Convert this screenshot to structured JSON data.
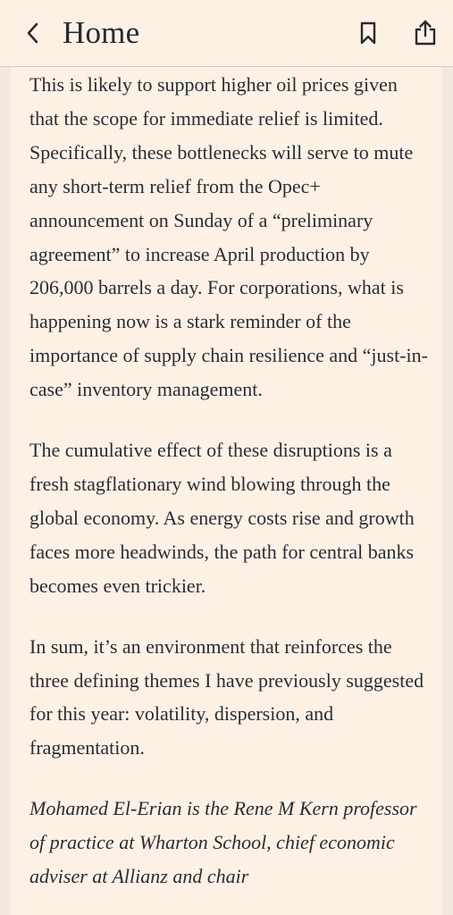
{
  "header": {
    "title": "Home",
    "icons": {
      "back": "chevron-left-icon",
      "bookmark": "bookmark-icon",
      "share": "share-icon"
    }
  },
  "article": {
    "paragraphs": [
      "This is likely to support higher oil prices given that the scope for immediate relief is limited. Specifically, these bottlenecks will serve to mute any short-term relief from the Opec+ announcement on Sunday of a “preliminary agreement” to increase April production by 206,000 barrels a day. For corporations, what is happening now is a stark reminder of the importance of supply chain resilience and “just-in-case” inventory management.",
      "The cumulative effect of these disruptions is a fresh stagflationary wind blowing through the global economy. As energy costs rise and growth faces more headwinds, the path for central banks becomes even trickier.",
      "In sum, it’s an environment that reinforces the three defining themes I have previously suggested for this year: volatility, dispersion, and fragmentation."
    ],
    "author_bio": "Mohamed El-Erian is the Rene M Kern professor of practice at Wharton School, chief economic adviser at Allianz and chair"
  },
  "colors": {
    "page_background": "#f2e9e0",
    "header_background": "#fdf1e6",
    "text": "#2a2d33",
    "icon": "#262a33"
  }
}
